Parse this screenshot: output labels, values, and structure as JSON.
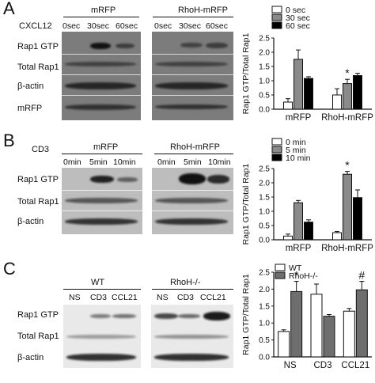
{
  "panels": [
    {
      "letter": "A",
      "treatment_label": "CXCL12",
      "groups": [
        "mRFP",
        "RhoH-mRFP"
      ],
      "timepoints": [
        "0sec",
        "30sec",
        "60sec",
        "0sec",
        "30sec",
        "60sec"
      ],
      "row_labels": [
        "Rap1 GTP",
        "Total Rap1",
        "β-actin",
        "mRFP"
      ]
    },
    {
      "letter": "B",
      "treatment_label": "CD3",
      "groups": [
        "mRFP",
        "RhoH-mRFP"
      ],
      "timepoints": [
        "0min",
        "5min",
        "10min",
        "0min",
        "5min",
        "10min"
      ],
      "row_labels": [
        "Rap1 GTP",
        "Total Rap1",
        "β-actin"
      ]
    },
    {
      "letter": "C",
      "treatment_label": "",
      "groups": [
        "WT",
        "RhoH-/-"
      ],
      "timepoints": [
        "NS",
        "CD3",
        "CCL21",
        "NS",
        "CD3",
        "CCL21"
      ],
      "row_labels": [
        "Rap1 GTP",
        "Total Rap1",
        "β-actin"
      ]
    }
  ],
  "chart_data": [
    {
      "type": "bar",
      "categories": [
        "mRFP",
        "RhoH-mRFP"
      ],
      "ylabel": "Rap1 GTP/Total Rap1",
      "ylim": [
        0,
        2.5
      ],
      "yticks": [
        "0.0",
        "0.5",
        "1.0",
        "1.5",
        "2.0",
        "2.5"
      ],
      "series": [
        {
          "name": "0 sec",
          "color": "#ffffff",
          "values": [
            0.25,
            0.5
          ],
          "errors": [
            0.12,
            0.22
          ]
        },
        {
          "name": "30 sec",
          "color": "#8a8a8a",
          "values": [
            1.75,
            0.9
          ],
          "errors": [
            0.33,
            0.15
          ]
        },
        {
          "name": "60 sec",
          "color": "#000000",
          "values": [
            1.08,
            1.18
          ],
          "errors": [
            0.06,
            0.08
          ]
        }
      ],
      "annotations": [
        {
          "category": "RhoH-mRFP",
          "series": "30 sec",
          "text": "*"
        }
      ],
      "legend": "top-right"
    },
    {
      "type": "bar",
      "categories": [
        "mRFP",
        "RhoH-mRFP"
      ],
      "ylabel": "Rap1 GTP/Total Rap1",
      "ylim": [
        0,
        2.5
      ],
      "yticks": [
        "0.0",
        "0.5",
        "1.0",
        "1.5",
        "2.0",
        "2.5"
      ],
      "series": [
        {
          "name": "0 min",
          "color": "#ffffff",
          "values": [
            0.13,
            0.25
          ],
          "errors": [
            0.07,
            0.04
          ]
        },
        {
          "name": "5 min",
          "color": "#8a8a8a",
          "values": [
            1.3,
            2.3
          ],
          "errors": [
            0.08,
            0.1
          ]
        },
        {
          "name": "10 min",
          "color": "#000000",
          "values": [
            0.62,
            1.48
          ],
          "errors": [
            0.08,
            0.27
          ]
        }
      ],
      "annotations": [
        {
          "category": "RhoH-mRFP",
          "series": "5 min",
          "text": "*"
        }
      ],
      "legend": "top-right"
    },
    {
      "type": "bar",
      "categories": [
        "NS",
        "CD3",
        "CCL21"
      ],
      "ylabel": "Rap1 GTP/Total Rap1",
      "ylim": [
        0,
        2.5
      ],
      "yticks": [
        "0.0",
        "0.5",
        "1.0",
        "1.5",
        "2.0",
        "2.5"
      ],
      "series": [
        {
          "name": "WT",
          "color": "#ffffff",
          "values": [
            0.75,
            1.85,
            1.35
          ],
          "errors": [
            0.05,
            0.3,
            0.08
          ]
        },
        {
          "name": "RhoH-/-",
          "color": "#6e6e6e",
          "values": [
            1.93,
            1.2,
            1.98
          ],
          "errors": [
            0.3,
            0.05,
            0.25
          ]
        }
      ],
      "annotations": [
        {
          "category": "NS",
          "series": "RhoH-/-",
          "text": "*"
        },
        {
          "category": "CCL21",
          "series": "RhoH-/-",
          "text": "#"
        }
      ],
      "legend": "top-left"
    }
  ]
}
